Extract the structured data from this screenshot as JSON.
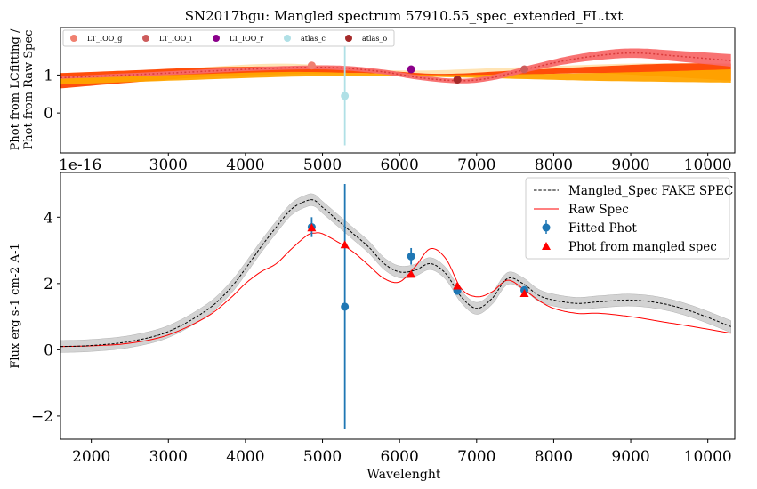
{
  "figure": {
    "title": "SN2017bgu: Mangled spectrum 57910.55_spec_extended_FL.txt"
  },
  "chart_data": [
    {
      "type": "line",
      "panel": "top",
      "ylabel_lines": [
        "Phot from LCfitting /",
        "Phot from Raw Spec"
      ],
      "xlim": [
        1600,
        10350
      ],
      "ylim": [
        -1.05,
        2.25
      ],
      "xticks": [
        3000,
        4000,
        5000,
        6000,
        7000,
        8000,
        9000,
        10000
      ],
      "xtick_labels": [
        "3000",
        "4000",
        "5000",
        "6000",
        "7000",
        "8000",
        "9000",
        "10000"
      ],
      "yticks": [
        0,
        1
      ],
      "ytick_labels": [
        "0",
        "1"
      ],
      "offset_text": "1e-16",
      "legend_position": "top-left",
      "legend": [
        {
          "label": "LT_IOO_g",
          "color": "#f08070"
        },
        {
          "label": "LT_IOO_i",
          "color": "#cd5c5c"
        },
        {
          "label": "LT_IOO_r",
          "color": "#8b008b"
        },
        {
          "label": "atlas_c",
          "color": "#b0e0e6"
        },
        {
          "label": "atlas_o",
          "color": "#a52a2a"
        }
      ],
      "ratio_curve": {
        "color": "#d93a3a",
        "x": [
          1600,
          2000,
          3000,
          4000,
          4800,
          5300,
          5800,
          6300,
          6800,
          7200,
          7700,
          8200,
          8700,
          9100,
          9600,
          10300
        ],
        "y": [
          0.93,
          0.96,
          1.05,
          1.15,
          1.2,
          1.18,
          1.08,
          0.92,
          0.85,
          0.93,
          1.18,
          1.4,
          1.54,
          1.58,
          1.5,
          1.38
        ]
      },
      "bands": [
        {
          "color": "#ffe3b0",
          "x": [
            1600,
            3000,
            4500,
            6000,
            7500,
            9000,
            10300
          ],
          "lo": [
            0.85,
            0.95,
            1.08,
            1.02,
            1.02,
            1.05,
            1.0
          ],
          "hi": [
            1.05,
            1.15,
            1.3,
            1.12,
            1.2,
            1.3,
            1.3
          ]
        },
        {
          "color": "#ff4500",
          "x": [
            1600,
            2500,
            3500,
            4500,
            5500,
            6500,
            7500,
            8500,
            9500,
            10300
          ],
          "lo": [
            0.65,
            0.8,
            0.95,
            1.02,
            1.05,
            0.98,
            1.0,
            1.05,
            0.95,
            0.85
          ],
          "hi": [
            1.05,
            1.12,
            1.2,
            1.22,
            1.16,
            1.03,
            1.12,
            1.22,
            1.3,
            1.3
          ]
        },
        {
          "color": "#ffa500",
          "x": [
            1600,
            3000,
            4500,
            5500,
            6500,
            7500,
            8500,
            9500,
            10300
          ],
          "lo": [
            0.75,
            0.85,
            0.95,
            0.98,
            0.95,
            0.9,
            0.85,
            0.82,
            0.8
          ],
          "hi": [
            0.95,
            1.0,
            1.08,
            1.05,
            1.0,
            1.02,
            1.05,
            1.1,
            1.15
          ]
        },
        {
          "color": "#f86a6a",
          "x": [
            1600,
            3000,
            4000,
            4800,
            5300,
            5800,
            6300,
            6800,
            7200,
            7700,
            8200,
            8700,
            9100,
            9600,
            10300
          ],
          "lo": [
            0.9,
            1.0,
            1.1,
            1.15,
            1.12,
            1.02,
            0.86,
            0.78,
            0.86,
            1.1,
            1.3,
            1.42,
            1.45,
            1.36,
            1.22
          ],
          "hi": [
            0.96,
            1.1,
            1.2,
            1.25,
            1.24,
            1.14,
            0.98,
            0.9,
            1.0,
            1.26,
            1.5,
            1.66,
            1.7,
            1.64,
            1.55
          ]
        }
      ],
      "points": [
        {
          "name": "LT_IOO_g",
          "x": 4860,
          "y": 1.25,
          "err": 0.0,
          "color": "#f08070"
        },
        {
          "name": "atlas_c",
          "x": 5290,
          "y": 0.45,
          "err": 1.3,
          "color": "#b0e0e6"
        },
        {
          "name": "LT_IOO_r",
          "x": 6150,
          "y": 1.15,
          "err": 0.0,
          "color": "#8b008b"
        },
        {
          "name": "atlas_o",
          "x": 6750,
          "y": 0.88,
          "err": 0.0,
          "color": "#a52a2a"
        },
        {
          "name": "LT_IOO_i",
          "x": 7620,
          "y": 1.15,
          "err": 0.0,
          "color": "#cd5c5c"
        }
      ]
    },
    {
      "type": "line",
      "panel": "bottom",
      "xlabel": "Wavelenght",
      "ylabel": "Flux erg s-1 cm-2 A-1",
      "xlim": [
        1600,
        10350
      ],
      "ylim": [
        -2.7,
        5.35
      ],
      "xticks": [
        2000,
        3000,
        4000,
        5000,
        6000,
        7000,
        8000,
        9000,
        10000
      ],
      "xtick_labels": [
        "2000",
        "3000",
        "4000",
        "5000",
        "6000",
        "7000",
        "8000",
        "9000",
        "10000"
      ],
      "yticks": [
        -2,
        0,
        2,
        4
      ],
      "ytick_labels": [
        "−2",
        "0",
        "2",
        "4"
      ],
      "legend_position": "top-right",
      "legend": [
        {
          "label": "Mangled_Spec FAKE SPEC",
          "style": "dashed-line",
          "color": "#000000"
        },
        {
          "label": "Raw Spec",
          "style": "line",
          "color": "#ff0000"
        },
        {
          "label": "Fitted Phot",
          "style": "errorbar-point",
          "color": "#1f77b4"
        },
        {
          "label": "Phot from mangled spec",
          "style": "triangle",
          "color": "#ff0000"
        }
      ],
      "mangled_spec": {
        "x": [
          1600,
          2000,
          2500,
          3000,
          3500,
          3800,
          4000,
          4200,
          4400,
          4600,
          4800,
          4900,
          5000,
          5200,
          5400,
          5600,
          5800,
          6000,
          6200,
          6400,
          6600,
          6800,
          7000,
          7200,
          7400,
          7600,
          7800,
          8000,
          8300,
          8600,
          9000,
          9400,
          9800,
          10300
        ],
        "y": [
          0.1,
          0.13,
          0.25,
          0.55,
          1.2,
          1.85,
          2.45,
          3.1,
          3.7,
          4.25,
          4.5,
          4.5,
          4.3,
          3.9,
          3.5,
          3.1,
          2.6,
          2.35,
          2.4,
          2.6,
          2.3,
          1.6,
          1.25,
          1.55,
          2.15,
          2.0,
          1.65,
          1.5,
          1.4,
          1.45,
          1.5,
          1.4,
          1.15,
          0.7
        ],
        "err": 0.18,
        "band_color": "#d3d3d3",
        "line_color": "#000000"
      },
      "raw_spec": {
        "x": [
          1600,
          2000,
          2500,
          3000,
          3500,
          3800,
          4000,
          4200,
          4400,
          4600,
          4800,
          4900,
          5000,
          5200,
          5400,
          5600,
          5800,
          6000,
          6200,
          6400,
          6600,
          6800,
          7000,
          7200,
          7400,
          7600,
          7800,
          8000,
          8300,
          8600,
          9000,
          9400,
          9800,
          10300
        ],
        "y": [
          0.1,
          0.12,
          0.2,
          0.45,
          1.0,
          1.55,
          2.0,
          2.35,
          2.6,
          3.05,
          3.45,
          3.52,
          3.5,
          3.25,
          2.95,
          2.55,
          2.15,
          2.05,
          2.5,
          3.05,
          2.75,
          1.85,
          1.6,
          1.75,
          2.1,
          1.85,
          1.5,
          1.25,
          1.1,
          1.1,
          1.0,
          0.85,
          0.7,
          0.5
        ],
        "color": "#ff0000"
      },
      "fitted_phot": {
        "color": "#1f77b4",
        "points": [
          {
            "x": 4860,
            "y": 3.7,
            "err": 0.3
          },
          {
            "x": 5290,
            "y": 1.3,
            "err": 3.7
          },
          {
            "x": 6150,
            "y": 2.82,
            "err": 0.25
          },
          {
            "x": 6750,
            "y": 1.78,
            "err": 0.12
          },
          {
            "x": 7620,
            "y": 1.8,
            "err": 0.12
          }
        ]
      },
      "phot_from_mangled": {
        "color": "#ff0000",
        "points": [
          {
            "x": 4860,
            "y": 3.68
          },
          {
            "x": 5290,
            "y": 3.17
          },
          {
            "x": 6150,
            "y": 2.28
          },
          {
            "x": 6750,
            "y": 1.93
          },
          {
            "x": 7620,
            "y": 1.7
          }
        ]
      }
    }
  ]
}
